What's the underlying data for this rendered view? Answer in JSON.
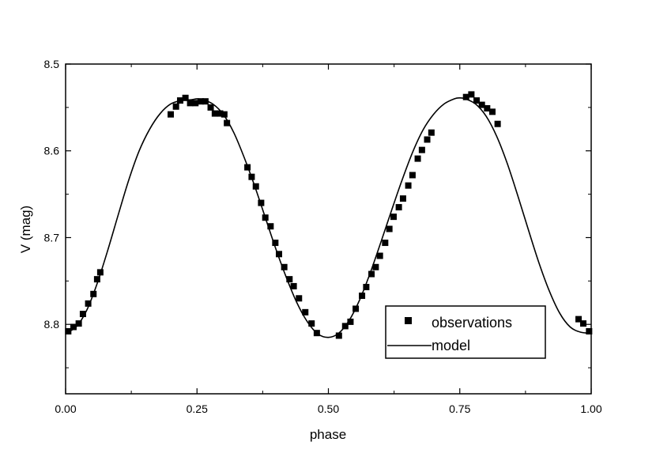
{
  "chart_data": {
    "type": "scatter",
    "title": "",
    "xlabel": "phase",
    "ylabel": "V (mag)",
    "xlim": [
      0.0,
      1.0
    ],
    "ylim": [
      8.5,
      8.88
    ],
    "y_inverted": true,
    "x_ticks": [
      0.0,
      0.25,
      0.5,
      0.75,
      1.0
    ],
    "x_tick_labels": [
      "0.00",
      "0.25",
      "0.50",
      "0.75",
      "1.00"
    ],
    "y_ticks": [
      8.5,
      8.6,
      8.7,
      8.8
    ],
    "y_tick_labels": [
      "8.5",
      "8.6",
      "8.7",
      "8.8"
    ],
    "grid": false,
    "legend": {
      "placement": "bottom-right"
    },
    "series": [
      {
        "name": "observations",
        "kind": "scatter",
        "marker": "square",
        "color": "#000000",
        "points": [
          [
            0.005,
            8.808
          ],
          [
            0.015,
            8.803
          ],
          [
            0.025,
            8.799
          ],
          [
            0.033,
            8.788
          ],
          [
            0.043,
            8.776
          ],
          [
            0.053,
            8.765
          ],
          [
            0.06,
            8.748
          ],
          [
            0.066,
            8.74
          ],
          [
            0.2,
            8.558
          ],
          [
            0.21,
            8.549
          ],
          [
            0.218,
            8.542
          ],
          [
            0.228,
            8.539
          ],
          [
            0.237,
            8.545
          ],
          [
            0.247,
            8.545
          ],
          [
            0.257,
            8.543
          ],
          [
            0.266,
            8.543
          ],
          [
            0.276,
            8.55
          ],
          [
            0.284,
            8.557
          ],
          [
            0.294,
            8.557
          ],
          [
            0.302,
            8.558
          ],
          [
            0.307,
            8.568
          ],
          [
            0.346,
            8.619
          ],
          [
            0.354,
            8.63
          ],
          [
            0.362,
            8.641
          ],
          [
            0.372,
            8.66
          ],
          [
            0.38,
            8.677
          ],
          [
            0.39,
            8.687
          ],
          [
            0.399,
            8.706
          ],
          [
            0.406,
            8.719
          ],
          [
            0.416,
            8.734
          ],
          [
            0.426,
            8.748
          ],
          [
            0.434,
            8.756
          ],
          [
            0.444,
            8.77
          ],
          [
            0.456,
            8.786
          ],
          [
            0.468,
            8.799
          ],
          [
            0.478,
            8.81
          ],
          [
            0.52,
            8.813
          ],
          [
            0.532,
            8.802
          ],
          [
            0.542,
            8.797
          ],
          [
            0.552,
            8.782
          ],
          [
            0.564,
            8.767
          ],
          [
            0.572,
            8.757
          ],
          [
            0.582,
            8.742
          ],
          [
            0.59,
            8.734
          ],
          [
            0.598,
            8.721
          ],
          [
            0.608,
            8.706
          ],
          [
            0.616,
            8.69
          ],
          [
            0.624,
            8.676
          ],
          [
            0.634,
            8.665
          ],
          [
            0.642,
            8.655
          ],
          [
            0.652,
            8.64
          ],
          [
            0.66,
            8.628
          ],
          [
            0.67,
            8.609
          ],
          [
            0.678,
            8.599
          ],
          [
            0.688,
            8.587
          ],
          [
            0.696,
            8.579
          ],
          [
            0.762,
            8.538
          ],
          [
            0.772,
            8.535
          ],
          [
            0.782,
            8.542
          ],
          [
            0.792,
            8.547
          ],
          [
            0.802,
            8.551
          ],
          [
            0.812,
            8.555
          ],
          [
            0.822,
            8.569
          ],
          [
            0.976,
            8.794
          ],
          [
            0.985,
            8.799
          ],
          [
            0.996,
            8.808
          ]
        ]
      },
      {
        "name": "model",
        "kind": "line",
        "color": "#000000",
        "points": [
          [
            0.0,
            8.81
          ],
          [
            0.02,
            8.803
          ],
          [
            0.04,
            8.784
          ],
          [
            0.06,
            8.753
          ],
          [
            0.08,
            8.715
          ],
          [
            0.1,
            8.674
          ],
          [
            0.12,
            8.634
          ],
          [
            0.14,
            8.6
          ],
          [
            0.16,
            8.575
          ],
          [
            0.18,
            8.557
          ],
          [
            0.2,
            8.546
          ],
          [
            0.22,
            8.542
          ],
          [
            0.24,
            8.541
          ],
          [
            0.25,
            8.54
          ],
          [
            0.26,
            8.541
          ],
          [
            0.28,
            8.546
          ],
          [
            0.3,
            8.558
          ],
          [
            0.32,
            8.579
          ],
          [
            0.34,
            8.608
          ],
          [
            0.36,
            8.641
          ],
          [
            0.38,
            8.677
          ],
          [
            0.4,
            8.713
          ],
          [
            0.42,
            8.746
          ],
          [
            0.44,
            8.775
          ],
          [
            0.46,
            8.797
          ],
          [
            0.48,
            8.811
          ],
          [
            0.5,
            8.815
          ],
          [
            0.52,
            8.81
          ],
          [
            0.54,
            8.795
          ],
          [
            0.56,
            8.771
          ],
          [
            0.58,
            8.74
          ],
          [
            0.6,
            8.705
          ],
          [
            0.62,
            8.669
          ],
          [
            0.64,
            8.634
          ],
          [
            0.66,
            8.602
          ],
          [
            0.68,
            8.576
          ],
          [
            0.7,
            8.558
          ],
          [
            0.72,
            8.546
          ],
          [
            0.74,
            8.54
          ],
          [
            0.75,
            8.539
          ],
          [
            0.76,
            8.54
          ],
          [
            0.78,
            8.546
          ],
          [
            0.8,
            8.56
          ],
          [
            0.82,
            8.583
          ],
          [
            0.84,
            8.614
          ],
          [
            0.86,
            8.651
          ],
          [
            0.88,
            8.69
          ],
          [
            0.9,
            8.728
          ],
          [
            0.92,
            8.761
          ],
          [
            0.94,
            8.787
          ],
          [
            0.96,
            8.803
          ],
          [
            0.98,
            8.809
          ],
          [
            1.0,
            8.81
          ]
        ]
      }
    ]
  }
}
